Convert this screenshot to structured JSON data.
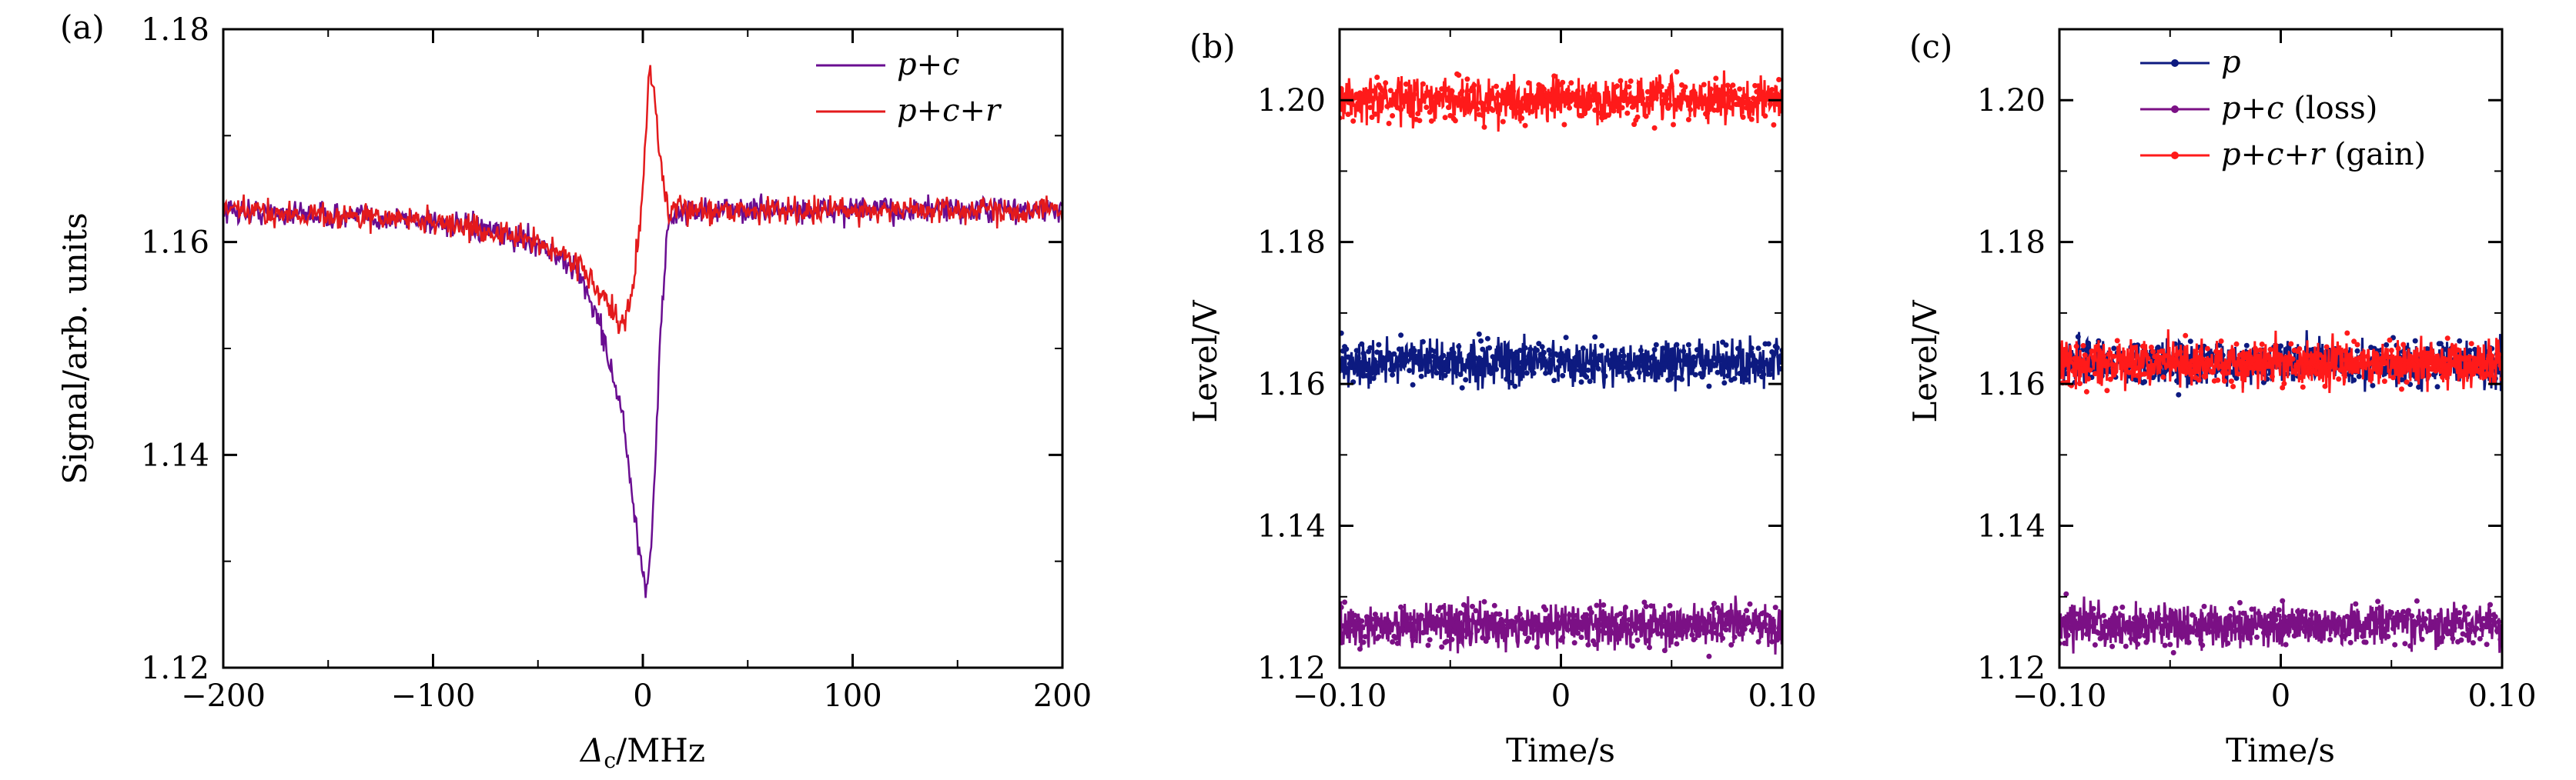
{
  "chart_data": [
    {
      "panel": "(a)",
      "type": "line",
      "xlabel_symbol": "Δ",
      "xlabel_sub": "c",
      "xlabel_rest": "/MHz",
      "ylabel": "Signal/arb. units",
      "xlim": [
        -200,
        200
      ],
      "ylim": [
        1.12,
        1.18
      ],
      "xticks": [
        -200,
        -100,
        0,
        100,
        200
      ],
      "xtick_labels": [
        "−200",
        "−100",
        "0",
        "100",
        "200"
      ],
      "yticks": [
        1.12,
        1.14,
        1.16,
        1.18
      ],
      "ytick_labels": [
        "1.12",
        "1.14",
        "1.16",
        "1.18"
      ],
      "legend": [
        {
          "label": "p+c",
          "color": "#6a0d91"
        },
        {
          "label": "p+c+r",
          "color": "#e31a1c"
        }
      ],
      "series": [
        {
          "name": "p+c",
          "color": "#6a0d91",
          "x": [
            -200,
            -100,
            -50,
            -30,
            -20,
            -10,
            -5,
            0,
            2,
            5,
            8,
            12,
            20,
            50,
            100,
            200
          ],
          "y": [
            1.163,
            1.162,
            1.16,
            1.157,
            1.152,
            1.144,
            1.136,
            1.128,
            1.127,
            1.135,
            1.15,
            1.162,
            1.163,
            1.163,
            1.163,
            1.163
          ]
        },
        {
          "name": "p+c+r",
          "color": "#e31a1c",
          "x": [
            -200,
            -100,
            -50,
            -30,
            -20,
            -10,
            -5,
            0,
            3,
            5,
            8,
            12,
            20,
            50,
            100,
            200
          ],
          "y": [
            1.163,
            1.162,
            1.16,
            1.158,
            1.155,
            1.152,
            1.155,
            1.165,
            1.176,
            1.175,
            1.168,
            1.163,
            1.163,
            1.163,
            1.163,
            1.163
          ]
        }
      ]
    },
    {
      "panel": "(b)",
      "type": "scatter",
      "xlabel": "Time/s",
      "ylabel": "Level/V",
      "xlim": [
        -0.1,
        0.1
      ],
      "ylim": [
        1.12,
        1.21
      ],
      "xticks": [
        -0.1,
        0,
        0.1
      ],
      "xtick_labels": [
        "−0.10",
        "0",
        "0.10"
      ],
      "yticks": [
        1.12,
        1.14,
        1.16,
        1.18,
        1.2
      ],
      "ytick_labels": [
        "1.12",
        "1.14",
        "1.16",
        "1.18",
        "1.20"
      ],
      "series": [
        {
          "name": "p+c+r",
          "color": "#ff1a1a",
          "level": 1.2,
          "noise": 0.0015
        },
        {
          "name": "p",
          "color": "#0d1a80",
          "level": 1.163,
          "noise": 0.0015
        },
        {
          "name": "p+c",
          "color": "#7b1085",
          "level": 1.126,
          "noise": 0.0015
        }
      ]
    },
    {
      "panel": "(c)",
      "type": "scatter",
      "xlabel": "Time/s",
      "ylabel": "Level/V",
      "xlim": [
        -0.1,
        0.1
      ],
      "ylim": [
        1.12,
        1.21
      ],
      "xticks": [
        -0.1,
        0,
        0.1
      ],
      "xtick_labels": [
        "−0.10",
        "0",
        "0.10"
      ],
      "yticks": [
        1.12,
        1.14,
        1.16,
        1.18,
        1.2
      ],
      "ytick_labels": [
        "1.12",
        "1.14",
        "1.16",
        "1.18",
        "1.20"
      ],
      "legend": [
        {
          "label": "p",
          "suffix": "",
          "color": "#0d1a80"
        },
        {
          "label": "p+c",
          "suffix": " (loss)",
          "color": "#7b1085"
        },
        {
          "label": "p+c+r",
          "suffix": " (gain)",
          "color": "#ff1a1a"
        }
      ],
      "series": [
        {
          "name": "p",
          "color": "#0d1a80",
          "level": 1.163,
          "noise": 0.0015
        },
        {
          "name": "p+c (loss)",
          "color": "#7b1085",
          "level": 1.126,
          "noise": 0.0015
        },
        {
          "name": "p+c+r (gain)",
          "color": "#ff1a1a",
          "level": 1.163,
          "noise": 0.0016
        }
      ]
    }
  ]
}
